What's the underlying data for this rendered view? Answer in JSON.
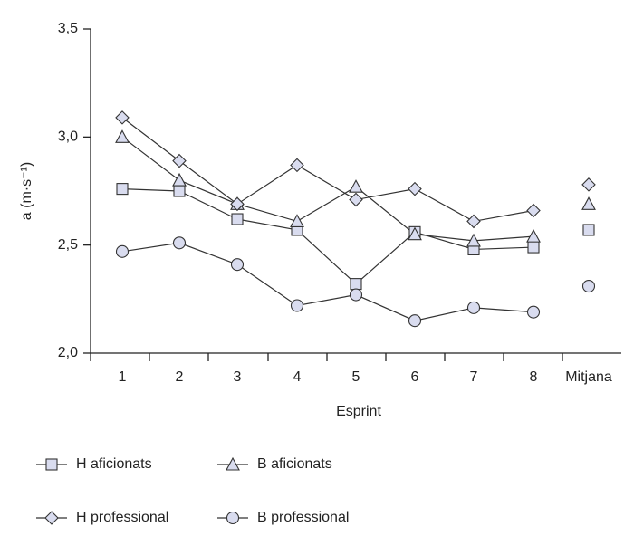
{
  "chart_data": {
    "type": "line",
    "y_label": "a (m·s⁻¹)",
    "x_label": "Esprint",
    "categories": [
      "1",
      "2",
      "3",
      "4",
      "5",
      "6",
      "7",
      "8",
      "Mitjana"
    ],
    "ylim": [
      2.0,
      3.5
    ],
    "yticks": [
      {
        "value": 2.0,
        "label": "2,0"
      },
      {
        "value": 2.5,
        "label": "2,5"
      },
      {
        "value": 3.0,
        "label": "3,0"
      },
      {
        "value": 3.5,
        "label": "3,5"
      }
    ],
    "series": [
      {
        "name": "H aficionats",
        "marker": "square",
        "color": "#d9dcef",
        "values": [
          2.76,
          2.75,
          2.62,
          2.57,
          2.32,
          2.56,
          2.48,
          2.49,
          2.57
        ]
      },
      {
        "name": "B aficionats",
        "marker": "triangle",
        "color": "#d9dcef",
        "values": [
          3.0,
          2.8,
          2.69,
          2.61,
          2.77,
          2.55,
          2.52,
          2.54,
          2.69
        ]
      },
      {
        "name": "H professional",
        "marker": "diamond",
        "color": "#d9dcef",
        "values": [
          3.09,
          2.89,
          2.69,
          2.87,
          2.71,
          2.76,
          2.61,
          2.66,
          2.78
        ]
      },
      {
        "name": "B professional",
        "marker": "circle",
        "color": "#d9dcef",
        "values": [
          2.47,
          2.51,
          2.41,
          2.22,
          2.27,
          2.15,
          2.21,
          2.19,
          2.31
        ]
      }
    ]
  }
}
